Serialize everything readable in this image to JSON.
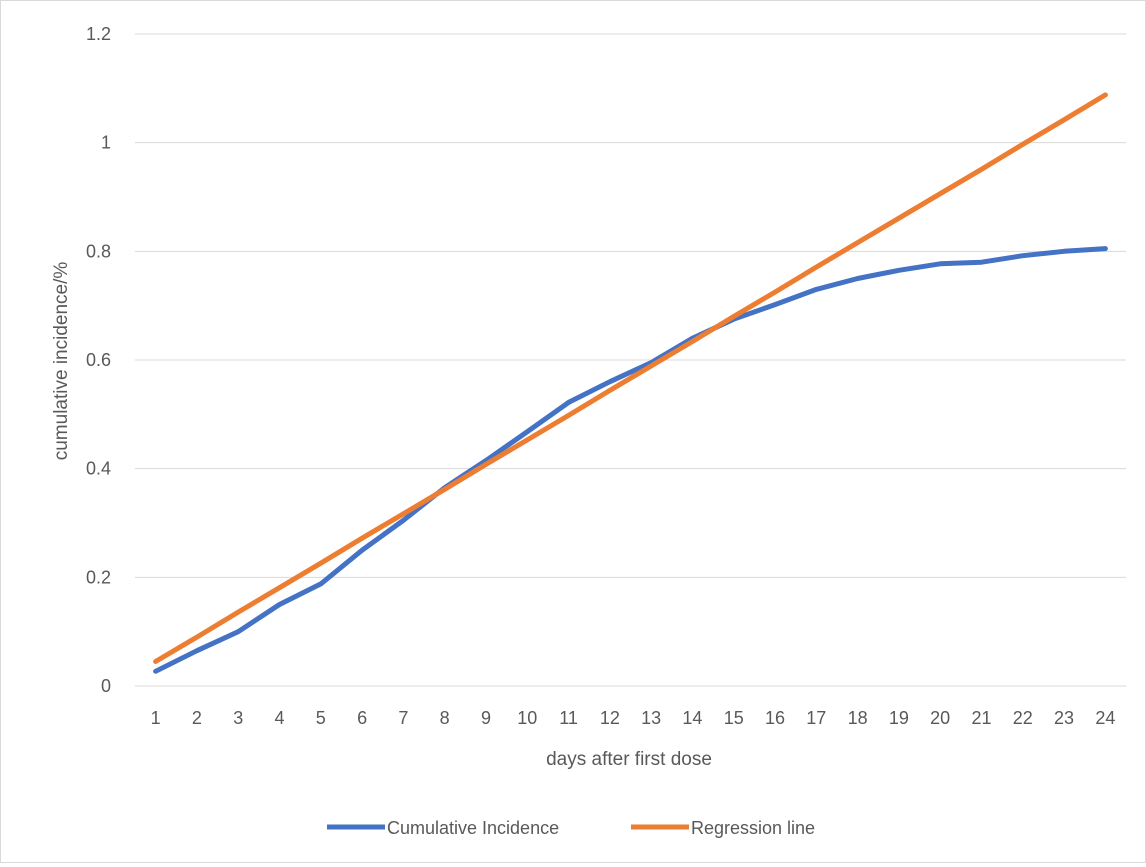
{
  "chart_data": {
    "type": "line",
    "title": "",
    "xlabel": "days after first dose",
    "ylabel": "cumulative incidence/%",
    "categories": [
      "1",
      "2",
      "3",
      "4",
      "5",
      "6",
      "7",
      "8",
      "9",
      "10",
      "11",
      "12",
      "13",
      "14",
      "15",
      "16",
      "17",
      "18",
      "19",
      "20",
      "21",
      "22",
      "23",
      "24"
    ],
    "ylim": [
      0,
      1.2
    ],
    "yticks": [
      "0",
      "0.2",
      "0.4",
      "0.6",
      "0.8",
      "1",
      "1.2"
    ],
    "grid": "horizontal",
    "legend_position": "bottom",
    "series": [
      {
        "name": "Cumulative Incidence",
        "color": "#4472C4",
        "values": [
          0.027,
          0.065,
          0.1,
          0.15,
          0.188,
          0.25,
          0.305,
          0.365,
          0.415,
          0.468,
          0.522,
          0.56,
          0.595,
          0.64,
          0.675,
          0.702,
          0.73,
          0.75,
          0.765,
          0.777,
          0.78,
          0.792,
          0.8,
          0.805
        ]
      },
      {
        "name": "Regression line",
        "color": "#ED7D31",
        "values": [
          0.045,
          0.09,
          0.136,
          0.181,
          0.226,
          0.272,
          0.317,
          0.362,
          0.408,
          0.453,
          0.498,
          0.544,
          0.589,
          0.634,
          0.68,
          0.725,
          0.771,
          0.816,
          0.861,
          0.906,
          0.951,
          0.997,
          1.042,
          1.088
        ]
      }
    ]
  }
}
